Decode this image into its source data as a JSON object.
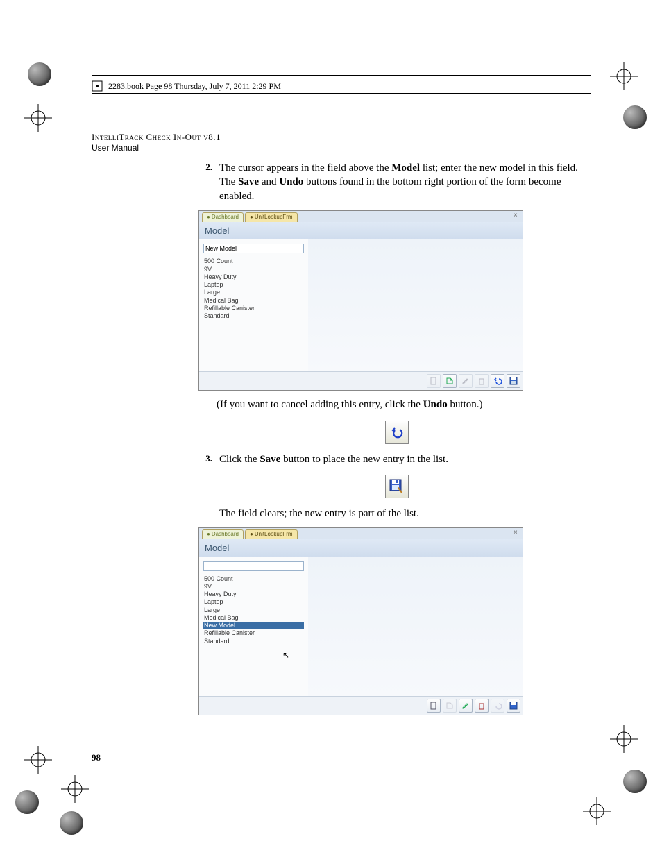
{
  "header": {
    "text": "2283.book  Page 98  Thursday, July 7, 2011  2:29 PM"
  },
  "title": {
    "line1": "IntelliTrack Check In-Out v8.1",
    "line2": "User Manual"
  },
  "steps": {
    "s2": {
      "num": "2.",
      "pre": "The cursor appears in the field above the ",
      "bold1": "Model",
      "mid1": " list; enter the new model in this field. The ",
      "bold2": "Save",
      "mid2": " and ",
      "bold3": "Undo",
      "post": " buttons found in the bottom right portion of the form become enabled."
    },
    "cancel": {
      "pre": "(If you want to cancel adding this entry, click the ",
      "bold": "Undo",
      "post": " button.)"
    },
    "s3": {
      "num": "3.",
      "pre": "Click the ",
      "bold": "Save",
      "post": " button to place the new entry in the list."
    },
    "clears": "The field clears; the new entry is part of the list."
  },
  "app": {
    "tab1": "Dashboard",
    "tab2": "UnitLookupFrm",
    "heading": "Model",
    "close": "×",
    "input_value": "New Model",
    "list1": [
      "500 Count",
      "9V",
      "Heavy Duty",
      "Laptop",
      "Large",
      "Medical Bag",
      "Refillable Canister",
      "Standard"
    ],
    "list2": [
      "500 Count",
      "9V",
      "Heavy Duty",
      "Laptop",
      "Large",
      "Medical Bag",
      "New Model",
      "Refillable Canister",
      "Standard"
    ],
    "selected2": "New Model",
    "toolbar_icons": [
      "new",
      "run",
      "edit",
      "delete",
      "undo",
      "save"
    ]
  },
  "pagenum": "98"
}
